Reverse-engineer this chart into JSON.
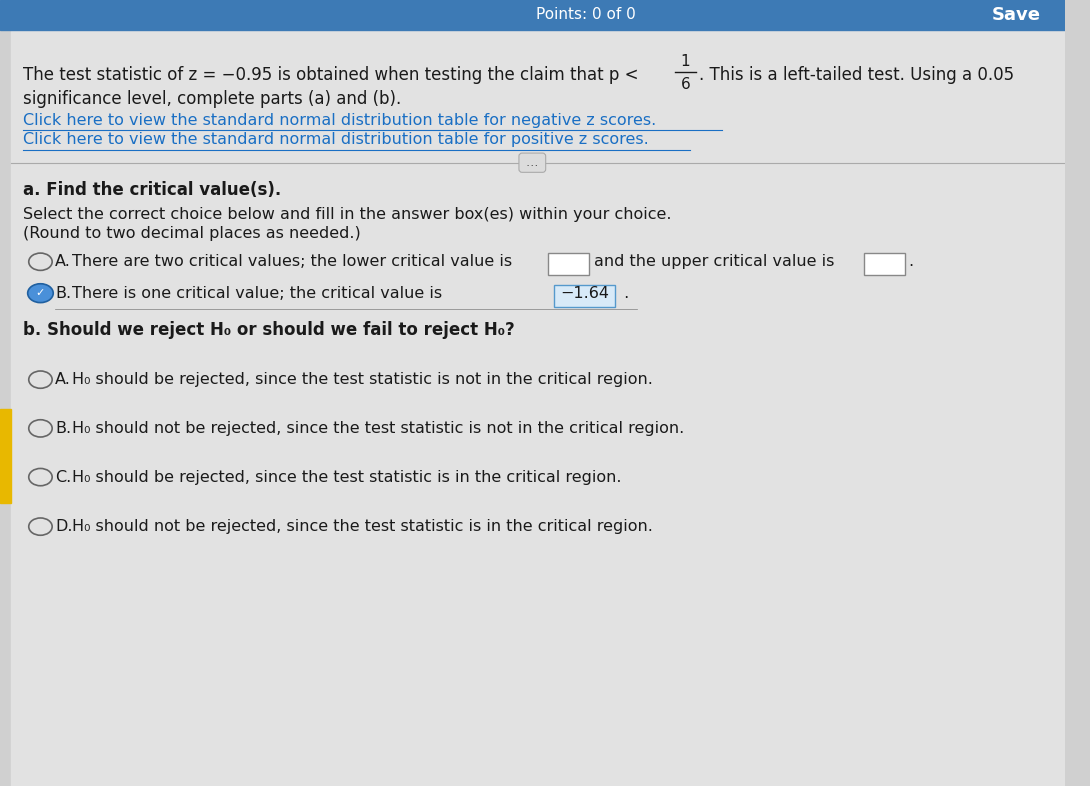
{
  "bg_color": "#d0d0d0",
  "top_bar_color": "#3d7ab5",
  "content_bg": "#e2e2e2",
  "text_color": "#1a1a1a",
  "link_color": "#1a6fc4",
  "separator_color": "#aaaaaa",
  "save_label": "Save",
  "points_text": "Points: 0 of 0",
  "intro_line1a": "The test statistic of z = −0.95 is obtained when testing the claim that p < ",
  "intro_line1b": ". This is a left-tailed test. Using a 0.05",
  "intro_line2": "significance level, complete parts (a) and (b).",
  "link1": "Click here to view the standard normal distribution table for negative z scores.",
  "link2": "Click here to view the standard normal distribution table for positive z scores.",
  "part_a_label": "a. Find the critical value(s).",
  "select_text": "Select the correct choice below and fill in the answer box(es) within your choice.",
  "round_text": "(Round to two decimal places as needed.)",
  "optA_part1": "There are two critical values; the lower critical value is",
  "optA_part2": "and the upper critical value is",
  "optA_part3": ".",
  "optB_part1": "There is one critical value; the critical value is ",
  "optB_value": "−1.64",
  "optB_part2": " .",
  "part_b_label": "b. Should we reject H₀ or should we fail to reject H₀?",
  "ans_A": "H₀ should be rejected, since the test statistic is not in the critical region.",
  "ans_B": "H₀ should not be rejected, since the test statistic is not in the critical region.",
  "ans_C": "H₀ should be rejected, since the test statistic is in the critical region.",
  "ans_D": "H₀ should not be rejected, since the test statistic is in the critical region."
}
